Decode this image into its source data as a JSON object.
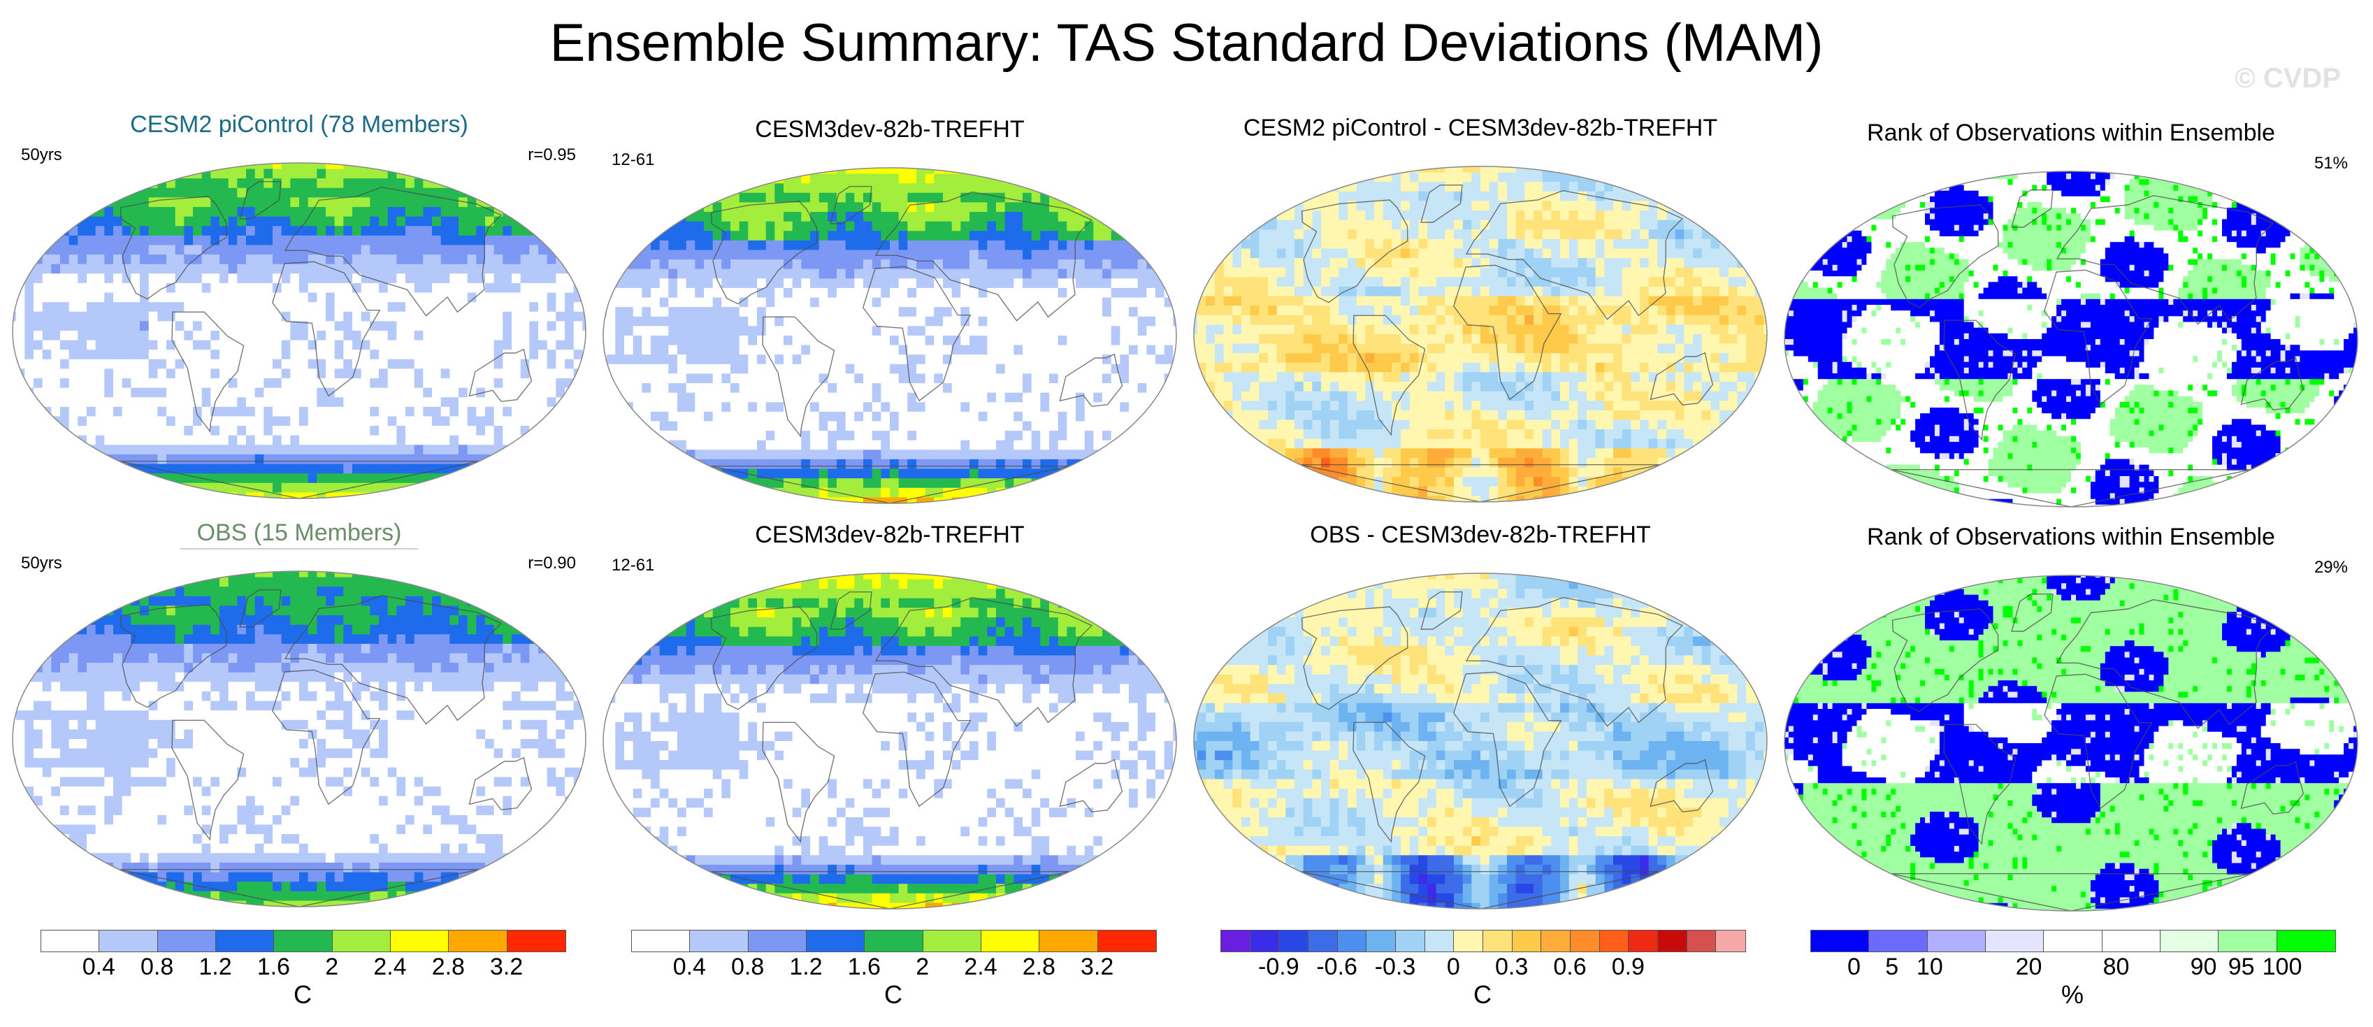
{
  "title": "Ensemble Summary: TAS Standard Deviations (MAM)",
  "watermark": "© CVDP",
  "chart_data": [
    {
      "type": "heatmap",
      "title": "CESM2 piControl (78 Members)",
      "left_label": "50yrs",
      "right_label": "r=0.95",
      "pattern": "stddev",
      "intensity": 1.0,
      "colorbar": "std"
    },
    {
      "type": "heatmap",
      "title": "CESM3dev-82b-TREFHT",
      "left_label": "12-61",
      "right_label": "",
      "pattern": "stddev",
      "intensity": 1.12,
      "colorbar": "std"
    },
    {
      "type": "heatmap",
      "title": "CESM2 piControl - CESM3dev-82b-TREFHT",
      "left_label": "",
      "right_label": "",
      "pattern": "diff",
      "intensity": 0.2,
      "colorbar": "diff"
    },
    {
      "type": "heatmap",
      "title": "Rank of Observations within Ensemble",
      "left_label": "",
      "right_label": "51%",
      "pattern": "rank",
      "intensity": 0.51,
      "colorbar": "rank"
    },
    {
      "type": "heatmap",
      "title": "OBS (15 Members)",
      "left_label": "50yrs",
      "right_label": "r=0.90",
      "pattern": "stddev",
      "intensity": 0.85,
      "colorbar": "std"
    },
    {
      "type": "heatmap",
      "title": "CESM3dev-82b-TREFHT",
      "left_label": "12-61",
      "right_label": "",
      "pattern": "stddev",
      "intensity": 1.12,
      "colorbar": "std"
    },
    {
      "type": "heatmap",
      "title": "OBS - CESM3dev-82b-TREFHT",
      "left_label": "",
      "right_label": "",
      "pattern": "diff",
      "intensity": -0.3,
      "colorbar": "diff"
    },
    {
      "type": "heatmap",
      "title": "Rank of Observations within Ensemble",
      "left_label": "",
      "right_label": "29%",
      "pattern": "rank",
      "intensity": 0.29,
      "colorbar": "rank"
    }
  ],
  "colorbars": {
    "std": {
      "unit": "C",
      "colors": [
        "#ffffff",
        "#b4c8fa",
        "#7d97f4",
        "#1e6ceb",
        "#23b950",
        "#a3ee3c",
        "#ffff00",
        "#ffa800",
        "#ff2800"
      ],
      "bounds": [
        0,
        0.4,
        0.8,
        1.2,
        1.6,
        2.0,
        2.4,
        2.8,
        3.2,
        3.6
      ],
      "labels": [
        "0.4",
        "0.8",
        "1.2",
        "1.6",
        "2",
        "2.4",
        "2.8",
        "3.2"
      ]
    },
    "diff": {
      "unit": "C",
      "colors": [
        "#6a1fe0",
        "#3a2ce8",
        "#2848e6",
        "#3c6ce8",
        "#4c8fee",
        "#6db3f2",
        "#9fd2f5",
        "#c6e6f7",
        "#fff6b0",
        "#ffe27a",
        "#ffc94a",
        "#ffac3a",
        "#ff8c28",
        "#ff5f1a",
        "#ef2a12",
        "#c90a0a",
        "#d65050",
        "#f6a8a8"
      ],
      "bounds": [
        -1.2,
        -1.05,
        -0.9,
        -0.75,
        -0.6,
        -0.45,
        -0.3,
        -0.15,
        0,
        0.15,
        0.3,
        0.45,
        0.6,
        0.75,
        0.9,
        1.05,
        1.2,
        1.35,
        1.5
      ],
      "labels": [
        "-0.9",
        "-0.6",
        "-0.3",
        "0",
        "0.3",
        "0.6",
        "0.9"
      ]
    },
    "rank": {
      "unit": "%",
      "colors": [
        "#0000ff",
        "#6a6aff",
        "#b0b0ff",
        "#e4e4ff",
        "#ffffff",
        "#ffffff",
        "#e4ffe4",
        "#a0ffa0",
        "#00ff00"
      ],
      "bounds": [
        0,
        5,
        10,
        20,
        50,
        80,
        90,
        95,
        100,
        105
      ],
      "labels": [
        "0",
        "5",
        "10",
        "20",
        "80",
        "90",
        "95",
        "100"
      ]
    }
  }
}
